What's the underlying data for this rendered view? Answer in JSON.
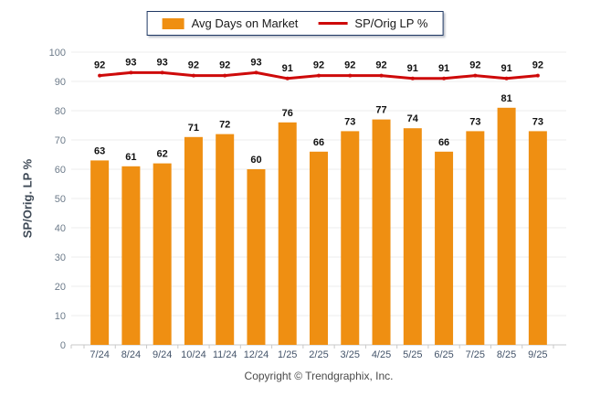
{
  "legend": {
    "bar_label": "Avg Days on Market",
    "line_label": "SP/Orig LP %"
  },
  "y_axis_title": "SP/Orig. LP %",
  "footer": {
    "text": "Copyright © Trendgraphix, Inc."
  },
  "colors": {
    "bar": "#EF8F12",
    "line": "#CE0A0A",
    "grid": "#EDEDED",
    "axis": "#C9C9C9",
    "y_tick_text": "#6D7B8A",
    "x_tick_text": "#44546A",
    "value_label": "#111111",
    "y_axis_title": "#3E4956",
    "legend_border": "#1F3864",
    "footer_text": "#4A4A4A"
  },
  "chart_data": {
    "type": "bar+line",
    "categories": [
      "7/24",
      "8/24",
      "9/24",
      "10/24",
      "11/24",
      "12/24",
      "1/25",
      "2/25",
      "3/25",
      "4/25",
      "5/25",
      "6/25",
      "7/25",
      "8/25",
      "9/25"
    ],
    "series": [
      {
        "name": "Avg Days on Market",
        "type": "bar",
        "values": [
          63,
          61,
          62,
          71,
          72,
          60,
          76,
          66,
          73,
          77,
          74,
          66,
          73,
          81,
          73
        ]
      },
      {
        "name": "SP/Orig LP %",
        "type": "line",
        "values": [
          92,
          93,
          93,
          92,
          92,
          93,
          91,
          92,
          92,
          92,
          91,
          91,
          92,
          91,
          92
        ]
      }
    ],
    "ylabel": "SP/Orig. LP %",
    "ylim": [
      0,
      100
    ],
    "y_tick_step": 10,
    "grid": true,
    "data_labels": true,
    "legend_position": "top-center"
  }
}
